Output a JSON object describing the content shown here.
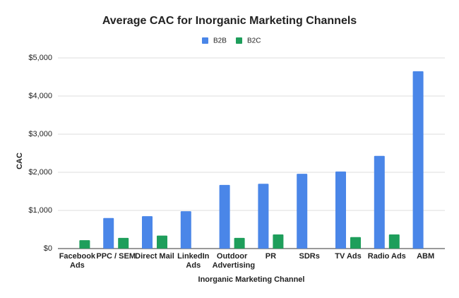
{
  "chart_data": {
    "type": "bar",
    "title": "Average CAC for Inorganic Marketing Channels",
    "x_label": "Inorganic Marketing Channel",
    "y_label": "CAC",
    "categories": [
      "Facebook Ads",
      "PPC / SEM",
      "Direct Mail",
      "LinkedIn Ads",
      "Outdoor Advertising",
      "PR",
      "SDRs",
      "TV Ads",
      "Radio Ads",
      "ABM"
    ],
    "series": [
      {
        "name": "B2B",
        "color": "#4a86e8",
        "values": [
          null,
          800,
          850,
          980,
          1670,
          1700,
          1960,
          2020,
          2430,
          4650
        ]
      },
      {
        "name": "B2C",
        "color": "#1e9e5b",
        "values": [
          220,
          280,
          340,
          null,
          280,
          370,
          null,
          300,
          370,
          null
        ]
      }
    ],
    "ylim": [
      0,
      5000
    ],
    "yticks": [
      {
        "value": 0,
        "label": "$0"
      },
      {
        "value": 1000,
        "label": "$1,000"
      },
      {
        "value": 2000,
        "label": "$2,000"
      },
      {
        "value": 3000,
        "label": "$3,000"
      },
      {
        "value": 4000,
        "label": "$4,000"
      },
      {
        "value": 5000,
        "label": "$5,000"
      }
    ],
    "grid": true,
    "legend": "top"
  }
}
